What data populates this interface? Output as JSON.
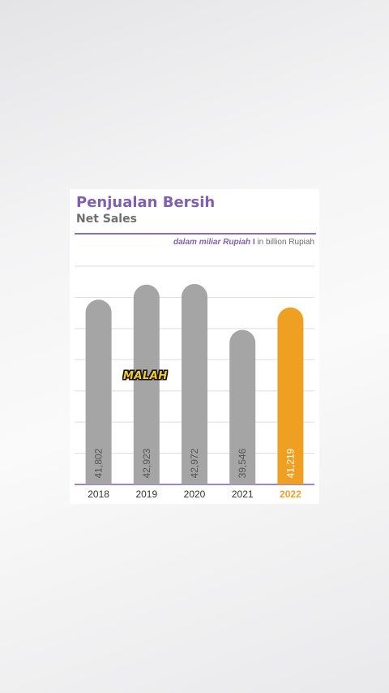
{
  "overlay": {
    "sticker_text": "MALAH"
  },
  "colors": {
    "accent": "#7f5fb2",
    "bar": "#a5a5a5",
    "highlight": "#ef9f22",
    "label": "#555555"
  },
  "chart_data": {
    "type": "bar",
    "title": "Penjualan Bersih",
    "subtitle": "Net Sales",
    "unit_note": {
      "id": "dalam miliar Rupiah",
      "separator": "I",
      "en": "in billion Rupiah"
    },
    "categories": [
      "2018",
      "2019",
      "2020",
      "2021",
      "2022"
    ],
    "values": [
      41802,
      42923,
      42972,
      39546,
      41219
    ],
    "value_labels": [
      "41,802",
      "42,923",
      "42,972",
      "39,546",
      "41,219"
    ],
    "highlight_index": 4,
    "xlabel": "",
    "ylabel": "",
    "grid": true,
    "legend": "none"
  }
}
